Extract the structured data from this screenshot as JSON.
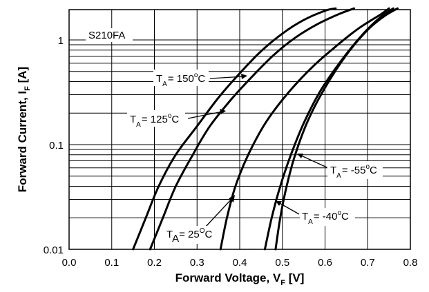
{
  "chart_data": {
    "type": "line",
    "title": "",
    "device_label": "S210FA",
    "xlabel": {
      "main": "Forward Voltage, V",
      "sub": "F",
      "unit": " [V]"
    },
    "ylabel": {
      "main": "Forward Current, I",
      "sub": "F",
      "unit": " [A]"
    },
    "x_scale": "linear",
    "y_scale": "log",
    "xlim": [
      0.0,
      0.8
    ],
    "ylim": [
      0.01,
      2
    ],
    "x_ticks": [
      "0.0",
      "0.1",
      "0.2",
      "0.3",
      "0.4",
      "0.5",
      "0.6",
      "0.7",
      "0.8"
    ],
    "y_ticks": [
      {
        "value": 1,
        "label": "1"
      },
      {
        "value": 0.1,
        "label": "0.1"
      },
      {
        "value": 0.01,
        "label": "0.01"
      }
    ],
    "grid": true,
    "legend": "none",
    "series": [
      {
        "name_parts": {
          "pre": "T",
          "sub": "A",
          "val": "= 150",
          "deg": "o",
          "unit": "C"
        },
        "points": [
          [
            0.15,
            0.01
          ],
          [
            0.18,
            0.02
          ],
          [
            0.21,
            0.04
          ],
          [
            0.25,
            0.08
          ],
          [
            0.3,
            0.15
          ],
          [
            0.35,
            0.28
          ],
          [
            0.4,
            0.48
          ],
          [
            0.45,
            0.78
          ],
          [
            0.5,
            1.15
          ],
          [
            0.55,
            1.55
          ],
          [
            0.6,
            1.9
          ],
          [
            0.625,
            2.0
          ]
        ]
      },
      {
        "name_parts": {
          "pre": "T",
          "sub": "A",
          "val": "= 125",
          "deg": "o",
          "unit": "C"
        },
        "points": [
          [
            0.19,
            0.01
          ],
          [
            0.22,
            0.02
          ],
          [
            0.25,
            0.04
          ],
          [
            0.29,
            0.08
          ],
          [
            0.33,
            0.15
          ],
          [
            0.38,
            0.27
          ],
          [
            0.43,
            0.45
          ],
          [
            0.48,
            0.72
          ],
          [
            0.53,
            1.05
          ],
          [
            0.58,
            1.4
          ],
          [
            0.63,
            1.75
          ],
          [
            0.668,
            2.0
          ]
        ]
      },
      {
        "name_parts": {
          "pre": "T",
          "sub": "A",
          "val": "= 25",
          "deg": "O",
          "unit": "C"
        },
        "points": [
          [
            0.355,
            0.01
          ],
          [
            0.37,
            0.02
          ],
          [
            0.39,
            0.04
          ],
          [
            0.42,
            0.08
          ],
          [
            0.46,
            0.16
          ],
          [
            0.51,
            0.3
          ],
          [
            0.57,
            0.55
          ],
          [
            0.63,
            0.9
          ],
          [
            0.68,
            1.3
          ],
          [
            0.73,
            1.75
          ],
          [
            0.75,
            2.0
          ]
        ]
      },
      {
        "name_parts": {
          "pre": "T",
          "sub": "A",
          "val": "= -40",
          "deg": "o",
          "unit": "C"
        },
        "points": [
          [
            0.459,
            0.01
          ],
          [
            0.475,
            0.02
          ],
          [
            0.495,
            0.04
          ],
          [
            0.52,
            0.08
          ],
          [
            0.55,
            0.16
          ],
          [
            0.59,
            0.33
          ],
          [
            0.64,
            0.65
          ],
          [
            0.69,
            1.15
          ],
          [
            0.73,
            1.65
          ],
          [
            0.76,
            2.0
          ]
        ]
      },
      {
        "name_parts": {
          "pre": "T",
          "sub": "A",
          "val": "= -55",
          "deg": "o",
          "unit": "C"
        },
        "points": [
          [
            0.484,
            0.01
          ],
          [
            0.495,
            0.02
          ],
          [
            0.51,
            0.04
          ],
          [
            0.53,
            0.08
          ],
          [
            0.56,
            0.17
          ],
          [
            0.6,
            0.35
          ],
          [
            0.65,
            0.72
          ],
          [
            0.7,
            1.25
          ],
          [
            0.74,
            1.7
          ],
          [
            0.77,
            2.0
          ]
        ]
      }
    ]
  }
}
